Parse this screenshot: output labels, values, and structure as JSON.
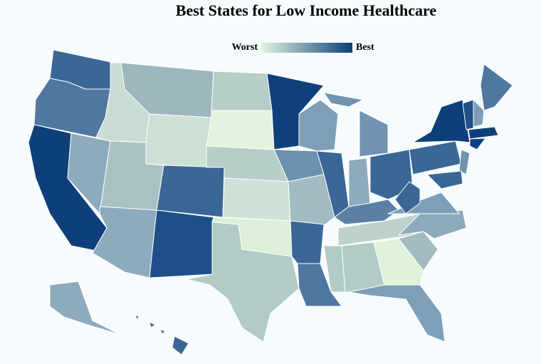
{
  "title": "Best States for Low Income Healthcare",
  "legend": {
    "low_label": "Worst",
    "high_label": "Best",
    "colors": [
      "#e2f4dd",
      "#0d3f7a"
    ]
  }
}
